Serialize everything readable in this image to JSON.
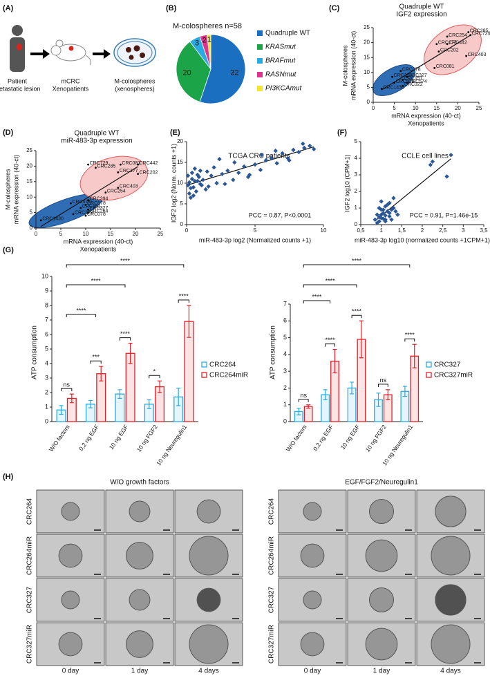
{
  "panel_a": {
    "label": "(A)",
    "patient": [
      "Patient",
      "metastatic lesion"
    ],
    "xenopatients": [
      "mCRC",
      "Xenopatients"
    ],
    "colospheres": [
      "M-colospheres",
      "(xenospheres)"
    ]
  },
  "chart_data": [
    {
      "type": "pie",
      "panel_label": "(B)",
      "title": "M-colospheres n=58",
      "categories": [
        "Quadruple WT",
        "KRASmut",
        "BRAFmut",
        "RASNmut",
        "PI3KCAmut"
      ],
      "values": [
        32,
        20,
        3,
        2,
        1
      ],
      "colors": [
        "#1a6fc0",
        "#1ba548",
        "#29aae1",
        "#e2338f",
        "#f2e531"
      ]
    },
    {
      "type": "scatter",
      "panel_label": "(C)",
      "title": [
        "Quadruple WT",
        "IGF2 expression"
      ],
      "xlabel": [
        "mRNA expression (40-ct)",
        "Xenopatients"
      ],
      "ylabel": [
        "M-colospheres",
        "mRNA expression (40-ct)"
      ],
      "point_labels": [
        "CRC285",
        "CRC729",
        "CRC254",
        "CRC177",
        "CRC442",
        "CRC202",
        "CRC403",
        "CRC081",
        "CRC078",
        "CRC394",
        "CRC327",
        "CRC151",
        "CRC574",
        "CRC578",
        "CRC322",
        "CRC1430"
      ],
      "x": [
        22.5,
        23,
        17.5,
        15,
        17.5,
        15.5,
        22,
        14.5,
        6.5,
        4.5,
        8,
        7,
        8,
        5,
        7,
        2
      ],
      "values": [
        23.5,
        22.5,
        22,
        19.5,
        19.5,
        17,
        15.5,
        11.5,
        10.5,
        8.5,
        8.5,
        7.5,
        6.5,
        6.5,
        5.5,
        4.5
      ],
      "color": "#000000",
      "marker": "dot",
      "trendline": true,
      "xlim": [
        0,
        25
      ],
      "xticks": [
        0,
        5,
        10,
        15,
        20,
        25
      ],
      "ylim": [
        0,
        25
      ],
      "yticks": [
        0,
        5,
        10,
        15,
        20,
        25
      ]
    },
    {
      "type": "scatter",
      "panel_label": "(D)",
      "title": [
        "Quadruple WT",
        "miR-483-3p expression"
      ],
      "xlabel": [
        "mRNA expression (40-ct)",
        "Xenopatients"
      ],
      "ylabel": [
        "M-colospheres",
        "mRNA expression (40-ct)"
      ],
      "point_labels": [
        "CRC729",
        "CRC285",
        "CRC081",
        "CRC442",
        "CRC177",
        "CRC202",
        "CRC403",
        "CRC254",
        "CRC394",
        "CRC574",
        "CRC578",
        "CRC151",
        "CRC327",
        "CRC264",
        "CRC322",
        "CRC078",
        "CRC1430"
      ],
      "x": [
        10.5,
        12,
        17,
        20.5,
        16.5,
        20.5,
        16.5,
        14,
        10.5,
        7,
        10,
        9,
        10.5,
        10.5,
        7.5,
        10,
        1
      ],
      "values": [
        20.5,
        19.5,
        20.5,
        20.5,
        18,
        17.5,
        13,
        11.5,
        9,
        8,
        7.5,
        6.5,
        6,
        5,
        4.5,
        4,
        2.5
      ],
      "color": "#000000",
      "marker": "dot",
      "trendline": true,
      "xlim": [
        0,
        25
      ],
      "xticks": [
        0,
        5,
        10,
        15,
        20,
        25
      ],
      "ylim": [
        0,
        25
      ],
      "yticks": [
        0,
        5,
        10,
        15,
        20,
        25
      ]
    },
    {
      "type": "scatter",
      "panel_label": "(E)",
      "title": "TCGA CRC patients",
      "xlabel": "miR-483-3p log2 (Normalized counts +1)",
      "ylabel": "IGF2 log2 (Norm. counts +1)",
      "annotation": "PCC = 0.87, P<0.0001",
      "x": [
        0.1,
        0.2,
        0.3,
        0.4,
        0.5,
        0.6,
        0.8,
        1.0,
        0.2,
        0.4,
        0.7,
        0.9,
        1.2,
        1.5,
        0.3,
        0.6,
        1.1,
        1.8,
        2.2,
        2.6,
        3.0,
        3.4,
        3.8,
        4.2,
        4.6,
        5.0,
        5.4,
        5.8,
        6.2,
        6.6,
        7.0,
        7.4,
        7.8,
        8.2,
        8.6,
        9.0,
        9.3,
        1.4,
        2.0,
        2.8,
        3.5,
        4.5,
        5.5,
        6.5,
        7.5,
        8.5,
        0.1,
        0.5,
        1.0,
        1.6,
        0.8,
        2.4
      ],
      "values": [
        9.5,
        10.2,
        8.8,
        11.0,
        9.0,
        10.5,
        12.0,
        9.8,
        7.5,
        12.5,
        8.0,
        11.5,
        10.8,
        12.8,
        6.5,
        13.5,
        9.5,
        11.8,
        10.0,
        12.2,
        13.0,
        10.8,
        12.5,
        14.0,
        12.0,
        14.5,
        13.2,
        15.5,
        16.0,
        14.8,
        17.2,
        16.0,
        18.0,
        17.5,
        18.5,
        19.0,
        18.2,
        8.5,
        13.8,
        9.8,
        15.0,
        11.5,
        16.8,
        17.8,
        15.5,
        19.5,
        11.8,
        7.0,
        13.0,
        9.2,
        10.5,
        15.8
      ],
      "color": "#2b5797",
      "marker": "diamond",
      "trendline": true,
      "xlim": [
        0,
        10
      ],
      "xticks": [
        0,
        5,
        10
      ],
      "ylim": [
        0,
        20
      ],
      "yticks": [
        0,
        5,
        10,
        15,
        20
      ]
    },
    {
      "type": "scatter",
      "panel_label": "(F)",
      "title": "CCLE cell lines",
      "xlabel": "miR-483-3p log10 (normalized counts +1CPM+1)",
      "ylabel": "IGF2 log10 (CPM+1)",
      "annotation": "PCC = 0.91, P=1.46e-15",
      "x": [
        0.85,
        0.9,
        0.95,
        1.0,
        1.0,
        1.05,
        1.1,
        1.1,
        1.15,
        1.2,
        1.2,
        1.25,
        1.3,
        0.9,
        0.95,
        1.0,
        1.05,
        1.1,
        1.15,
        1.2,
        1.3,
        1.35,
        1.0,
        1.1,
        1.4,
        2.2,
        2.25,
        2.6,
        2.7,
        0.95,
        1.05,
        1.25
      ],
      "values": [
        0.3,
        0.6,
        0.2,
        0.9,
        0.4,
        0.7,
        1.1,
        0.3,
        0.8,
        1.3,
        0.5,
        0.9,
        1.6,
        0.1,
        1.0,
        0.6,
        0.35,
        0.55,
        1.2,
        0.7,
        1.0,
        0.8,
        1.4,
        0.2,
        0.6,
        3.6,
        3.8,
        2.9,
        4.2,
        0.45,
        0.9,
        0.3
      ],
      "color": "#2b5797",
      "marker": "diamond",
      "trendline": true,
      "xlim": [
        0.5,
        3.5
      ],
      "xticks": [
        {
          "value": 0.5,
          "label": "0,5"
        },
        1,
        {
          "value": 1.5,
          "label": "1,5"
        },
        2,
        {
          "value": 2.5,
          "label": "2,5"
        },
        3,
        {
          "value": 3.5,
          "label": "3,5"
        }
      ],
      "ylim": [
        0,
        5
      ],
      "yticks": [
        0,
        1,
        2,
        3,
        4,
        5
      ]
    },
    {
      "type": "bar",
      "panel_label": "(G)",
      "ylabel": "ATP consumption",
      "categories": [
        "W/O factors",
        "0,2 ng EGF",
        "10 ng EGF",
        "10 ng FGF2",
        "10 ng Neuregulin1"
      ],
      "series": [
        {
          "name": "CRC264",
          "color": "#29abe2",
          "values": [
            0.8,
            1.2,
            1.9,
            1.2,
            1.7
          ],
          "errors": [
            0.3,
            0.25,
            0.3,
            0.3,
            0.6
          ]
        },
        {
          "name": "CRC264miR",
          "color": "#e41e26",
          "values": [
            1.6,
            3.3,
            4.7,
            2.4,
            6.9
          ],
          "errors": [
            0.3,
            0.5,
            0.7,
            0.4,
            1.1
          ]
        }
      ],
      "ylim": [
        0,
        10
      ],
      "yticks": [
        0,
        1,
        2,
        3,
        4,
        5,
        6,
        7,
        8,
        9,
        10
      ],
      "pair_significance": [
        "ns",
        "***",
        "****",
        "*",
        "****"
      ],
      "control_significance": [
        null,
        "****",
        "****",
        null,
        "****"
      ]
    },
    {
      "type": "bar",
      "ylabel": "ATP consumption",
      "categories": [
        "W/O factors",
        "0,2 ng EGF",
        "10 ng EGF",
        "10 ng FGF2",
        "10 ng Neuregulin1"
      ],
      "series": [
        {
          "name": "CRC327",
          "color": "#29abe2",
          "values": [
            0.6,
            1.6,
            2.0,
            1.3,
            1.8
          ],
          "errors": [
            0.2,
            0.3,
            0.35,
            0.4,
            0.3
          ]
        },
        {
          "name": "CRC327miR",
          "color": "#e41e26",
          "values": [
            0.9,
            3.6,
            4.9,
            1.6,
            3.9
          ],
          "errors": [
            0.1,
            0.7,
            1.1,
            0.3,
            0.7
          ]
        }
      ],
      "ylim": [
        0,
        7
      ],
      "yticks": [
        0,
        1,
        2,
        3,
        4,
        5,
        6,
        7
      ],
      "pair_significance": [
        "ns",
        "****",
        "****",
        "ns",
        "****"
      ],
      "control_significance": [
        null,
        "****",
        "****",
        null,
        "****"
      ]
    }
  ],
  "panel_h": {
    "label": "(H)",
    "left_title": "W/O growth factors",
    "right_title": "EGF/FGF2/Neuregulin1",
    "rows": [
      "CRC264",
      "CRC264miR",
      "CRC327",
      "CRC327miR"
    ],
    "columns": [
      "0 day",
      "1 day",
      "4 days"
    ]
  }
}
